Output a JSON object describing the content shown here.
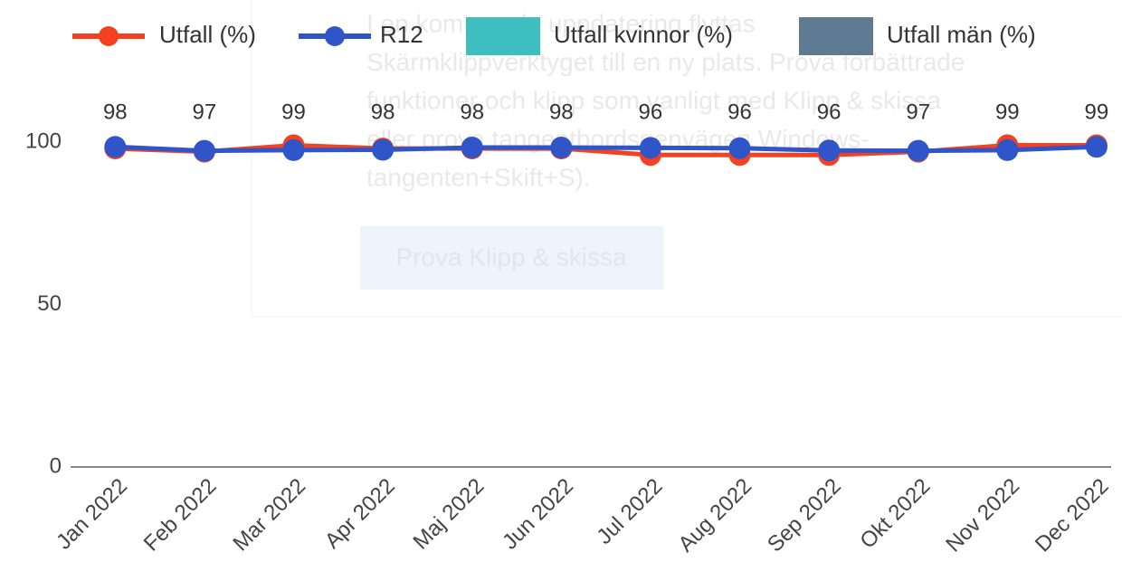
{
  "overlay": {
    "lines": [
      "I en kommande uppdatering flyttas",
      "Skärmklippverktyget till en ny plats. Prova förbättrade",
      "funktioner och klipp som vanligt med Klipp & skissa",
      "eller prova tangentbordsgenvägen Windows-",
      "tangenten+Skift+S)."
    ],
    "button": "Prova Klipp & skissa"
  },
  "chart_data": {
    "type": "line",
    "categories": [
      "Jan 2022",
      "Feb 2022",
      "Mar 2022",
      "Apr 2022",
      "Maj 2022",
      "Jun 2022",
      "Jul 2022",
      "Aug 2022",
      "Sep 2022",
      "Okt 2022",
      "Nov 2022",
      "Dec 2022"
    ],
    "series": [
      {
        "name": "Utfall (%)",
        "color": "#f4411f",
        "marker": "line",
        "labels": true,
        "values": [
          98,
          97,
          99,
          98,
          98,
          98,
          96,
          96,
          96,
          97,
          99,
          99
        ]
      },
      {
        "name": "R12",
        "color": "#2f55c8",
        "marker": "line",
        "values": [
          98.5,
          97.3,
          97.5,
          97.6,
          98.3,
          98.3,
          98.2,
          98.1,
          97.4,
          97.3,
          97.5,
          98.5
        ]
      },
      {
        "name": "Utfall kvinnor (%)",
        "color": "#3dbfbf",
        "marker": "square",
        "values": [
          null,
          null,
          null,
          null,
          null,
          null,
          null,
          null,
          null,
          null,
          null,
          null
        ]
      },
      {
        "name": "Utfall män (%)",
        "color": "#5d7a92",
        "marker": "square",
        "values": [
          null,
          null,
          null,
          null,
          null,
          null,
          null,
          null,
          null,
          null,
          null,
          null
        ]
      }
    ],
    "ylim": [
      0,
      110
    ],
    "yticks": [
      0,
      50,
      100
    ],
    "grid": false,
    "legend": "top"
  }
}
